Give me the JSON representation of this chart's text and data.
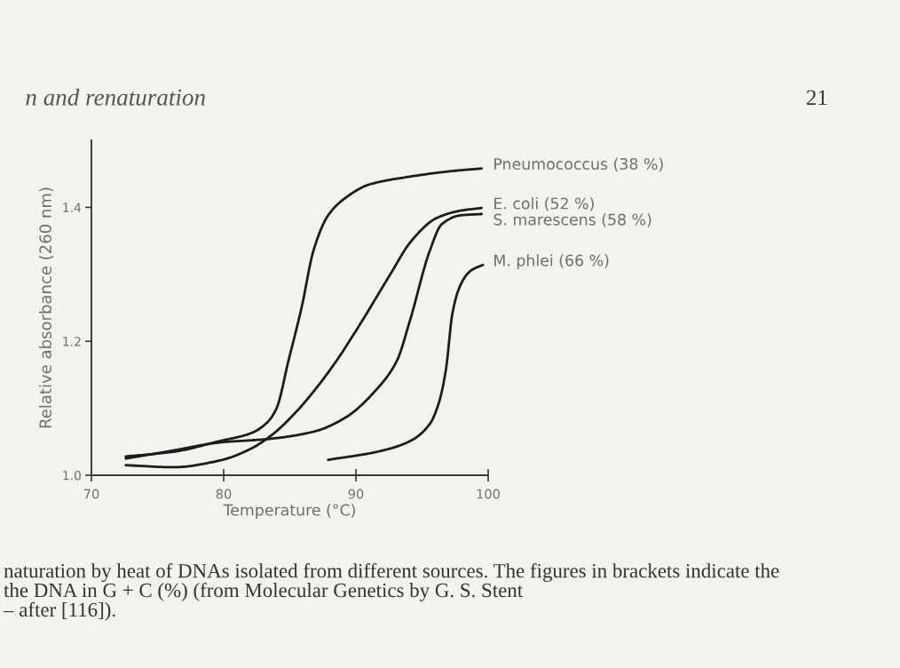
{
  "chart_data": {
    "type": "line",
    "xlabel": "Temperature (°C)",
    "ylabel": "Relative absorbance (260 nm)",
    "xlim": [
      70,
      100
    ],
    "ylim": [
      1.0,
      1.5
    ],
    "xticks": [
      70,
      80,
      90,
      100
    ],
    "yticks": [
      {
        "value": 1.0,
        "label": "1.0"
      },
      1.2,
      1.4
    ],
    "series": [
      {
        "name": "Pneumococcus (38 %)",
        "color": "#1c1c1c",
        "x": [
          72.6,
          76.2,
          79.7,
          82.1,
          83.3,
          84.0,
          84.9,
          85.9,
          86.8,
          87.9,
          89.2,
          91.0,
          93.8,
          97.2,
          99.5
        ],
        "values": [
          1.028,
          1.035,
          1.051,
          1.063,
          1.079,
          1.1,
          1.171,
          1.251,
          1.336,
          1.388,
          1.414,
          1.434,
          1.445,
          1.454,
          1.458
        ]
      },
      {
        "name": "E. coli (52 %)",
        "color": "#1c1c1c",
        "x": [
          72.6,
          76.2,
          79.7,
          82.0,
          83.7,
          85.5,
          87.0,
          88.5,
          90.3,
          92.6,
          94.2,
          96.1,
          97.9,
          99.5
        ],
        "values": [
          1.015,
          1.012,
          1.022,
          1.039,
          1.061,
          1.095,
          1.13,
          1.17,
          1.225,
          1.3,
          1.35,
          1.384,
          1.395,
          1.399
        ]
      },
      {
        "name": "S. marescens (58 %)",
        "color": "#1c1c1c",
        "x": [
          72.6,
          76.2,
          79.7,
          83.3,
          86.8,
          89.2,
          91.6,
          93.1,
          94.1,
          95.6,
          96.5,
          97.9,
          99.5
        ],
        "values": [
          1.025,
          1.037,
          1.049,
          1.054,
          1.065,
          1.086,
          1.129,
          1.171,
          1.232,
          1.336,
          1.375,
          1.388,
          1.39
        ]
      },
      {
        "name": "M. phlei (66 %)",
        "color": "#1c1c1c",
        "x": [
          87.9,
          91.6,
          94.1,
          95.6,
          96.3,
          96.8,
          97.3,
          97.8,
          98.4,
          98.8,
          99.6
        ],
        "values": [
          1.023,
          1.035,
          1.051,
          1.077,
          1.11,
          1.157,
          1.242,
          1.279,
          1.3,
          1.307,
          1.314
        ]
      }
    ],
    "annotations": [
      "n and renaturation",
      "21",
      "naturation by heat of DNAs isolated from different sources. The figures in brackets indicate the\nthe DNA in G + C (%) (from Molecular Genetics by G. S. Stent\n– after [116])."
    ]
  }
}
